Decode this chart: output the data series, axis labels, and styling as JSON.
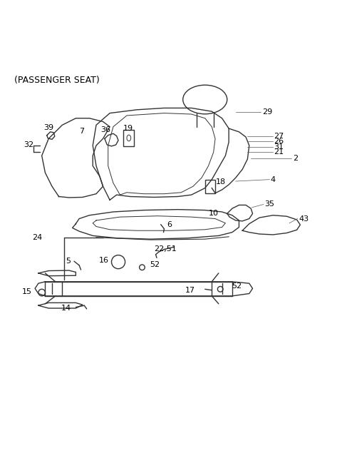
{
  "title": "(PASSENGER SEAT)",
  "bg_color": "#ffffff",
  "line_color": "#333333",
  "label_color": "#000000",
  "title_fontsize": 9,
  "label_fontsize": 8
}
